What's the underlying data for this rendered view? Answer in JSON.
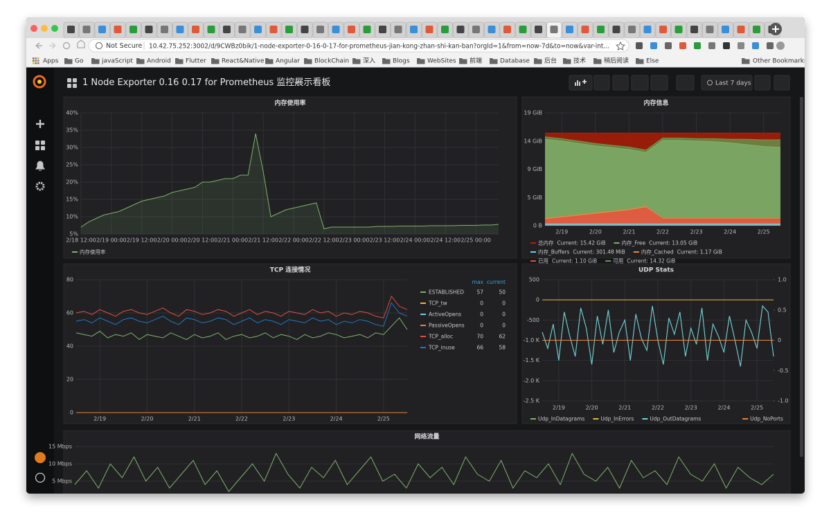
{
  "browser": {
    "security": "Not Secure",
    "url": "10.42.75.252:3002/d/9CWBz0bik/1-node-exporter-0-16-0-17-for-prometheus-jian-kong-zhan-shi-kan-ban?orgId=1&from=now-7d&to=now&var-int...",
    "bookmarks": [
      "Apps",
      "Go",
      "javaScript",
      "Android",
      "Flutter",
      "React&Native",
      "Angular",
      "BlockChain",
      "深入",
      "Blogs",
      "WebSites",
      "前端",
      "Database",
      "后台",
      "技术",
      "稍后阅读",
      "Else"
    ],
    "other_bookmarks": "Other Bookmarks"
  },
  "dashboard": {
    "title": "1 Node Exporter 0.16 0.17 for Prometheus 监控展示看板",
    "time_range": "Last 7 days"
  },
  "chart_data": [
    {
      "type": "line",
      "title": "内存使用率",
      "area": true,
      "grid": true,
      "legend": "bottom",
      "categories": [
        "2/18 12:00",
        null,
        null,
        null,
        "2/19 00:00",
        null,
        null,
        null,
        "2/19 12:00",
        null,
        null,
        null,
        "2/20 00:00",
        null,
        null,
        null,
        "2/20 12:00",
        null,
        null,
        null,
        "2/21 00:00",
        null,
        null,
        null,
        "2/21 12:00",
        null,
        null,
        null,
        "2/22 00:00",
        null,
        null,
        null,
        "2/22 12:00",
        null,
        null,
        null,
        "2/23 00:00",
        null,
        null,
        null,
        "2/23 12:00",
        null,
        null,
        null,
        "2/24 00:00",
        null,
        null,
        null,
        "2/24 12:00",
        null,
        null,
        null,
        "2/25 00:00",
        null,
        null,
        null
      ],
      "series": [
        {
          "name": "内存使用率",
          "color": "#7eb26d",
          "values": [
            7,
            8.5,
            9.5,
            10.5,
            11,
            11.5,
            12.5,
            13.5,
            14.5,
            15,
            15.5,
            16,
            17,
            17.5,
            18,
            18.5,
            20,
            20,
            20.5,
            21,
            21,
            22,
            22,
            34,
            23,
            10,
            11,
            12,
            12.5,
            13,
            13.5,
            14,
            6.5,
            7,
            7,
            7,
            7,
            7,
            7,
            7.2,
            7.2,
            7.2,
            7.3,
            7.3,
            7.3,
            7.3,
            7.4,
            7.4,
            7.4,
            7.4,
            7.5,
            7.5,
            7.5,
            7.6,
            7.6,
            7.8
          ]
        }
      ],
      "ylim": [
        5,
        40
      ],
      "yticks": [
        {
          "value": 5,
          "label": "5%"
        },
        {
          "value": 10,
          "label": "10%"
        },
        {
          "value": 15,
          "label": "15%"
        },
        {
          "value": 20,
          "label": "20%"
        },
        {
          "value": 25,
          "label": "25%"
        },
        {
          "value": 30,
          "label": "30%"
        },
        {
          "value": 35,
          "label": "35%"
        },
        {
          "value": 40,
          "label": "40%"
        }
      ]
    },
    {
      "type": "line",
      "title": "内存信息",
      "area": true,
      "grid": true,
      "legend": "bottom",
      "categories": [
        null,
        "2/19",
        null,
        "2/20",
        null,
        "2/21",
        null,
        "2/22",
        null,
        "2/23",
        null,
        "2/24",
        null,
        "2/25",
        null
      ],
      "series": [
        {
          "name": "总内存",
          "color": "#bf1b00",
          "current": {
            "value": 15.42,
            "label": "Current: 15.42 GiB"
          },
          "values": [
            15.42,
            15.42,
            15.42,
            15.42,
            15.42,
            15.42,
            15.42,
            15.42,
            15.42,
            15.42,
            15.42,
            15.42,
            15.42,
            15.42,
            15.42
          ]
        },
        {
          "name": "内存_Free",
          "color": "#7eb26d",
          "current": {
            "value": 13.05,
            "label": "Current: 13.05 GiB"
          },
          "values": [
            14.4,
            14.1,
            13.7,
            13.3,
            13.0,
            12.7,
            12.2,
            14.2,
            14.2,
            14.1,
            14.0,
            13.8,
            13.5,
            13.2,
            13.05
          ]
        },
        {
          "name": "内存_Buffers",
          "color": "#6ed0e0",
          "current": {
            "value": 0.29441,
            "label": "Current: 301.48 MiB"
          },
          "values": [
            0.3,
            0.3,
            0.3,
            0.3,
            0.3,
            0.3,
            0.3,
            0.3,
            0.3,
            0.3,
            0.3,
            0.3,
            0.3,
            0.3,
            0.29441
          ]
        },
        {
          "name": "内存_Cached",
          "color": "#ef843c",
          "current": {
            "value": 1.17,
            "label": "Current: 1.17 GiB"
          },
          "values": [
            1.2,
            1.5,
            1.8,
            2.1,
            2.4,
            2.7,
            3.2,
            1.2,
            1.2,
            1.2,
            1.2,
            1.2,
            1.2,
            1.2,
            1.17
          ]
        },
        {
          "name": "已用",
          "color": "#e24d42",
          "current": {
            "value": 1.1,
            "label": "Current: 1.10 GiB"
          },
          "values": [
            1.0,
            1.3,
            1.6,
            1.9,
            2.2,
            2.5,
            3.0,
            1.1,
            1.1,
            1.1,
            1.1,
            1.1,
            1.1,
            1.1,
            1.1
          ]
        },
        {
          "name": "可用",
          "color": "#629e51",
          "current": {
            "value": 14.32,
            "label": "Current: 14.32 GiB"
          },
          "values": [
            14.8,
            14.5,
            14.1,
            13.7,
            13.4,
            13.1,
            12.6,
            14.6,
            14.6,
            14.5,
            14.5,
            14.4,
            14.4,
            14.3,
            14.32
          ]
        }
      ],
      "ylim": [
        0,
        18.8
      ],
      "yticks": [
        {
          "value": 0,
          "label": "0 B"
        },
        {
          "value": 4.7,
          "label": "5 GiB"
        },
        {
          "value": 9.4,
          "label": "9 GiB"
        },
        {
          "value": 14.1,
          "label": "14 GiB"
        },
        {
          "value": 18.8,
          "label": "19 GiB"
        }
      ]
    },
    {
      "type": "line",
      "title": "TCP 连接情况",
      "grid": true,
      "legend": "table",
      "legend_headers": [
        "max",
        "current"
      ],
      "categories": [
        null,
        null,
        null,
        "2/19",
        null,
        null,
        null,
        null,
        null,
        "2/20",
        null,
        null,
        null,
        null,
        null,
        "2/21",
        null,
        null,
        null,
        null,
        null,
        "2/22",
        null,
        null,
        null,
        null,
        null,
        "2/23",
        null,
        null,
        null,
        null,
        null,
        "2/24",
        null,
        null,
        null,
        null,
        null,
        "2/25",
        null,
        null,
        null
      ],
      "series": [
        {
          "name": "ESTABLISHED",
          "color": "#7eb26d",
          "max": 57,
          "current": 50,
          "values": [
            48,
            47,
            46,
            49,
            45,
            47,
            46,
            48,
            44,
            47,
            46,
            45,
            48,
            46,
            44,
            47,
            45,
            46,
            48,
            44,
            46,
            47,
            45,
            46,
            48,
            45,
            47,
            46,
            44,
            47,
            45,
            46,
            48,
            47,
            45,
            46,
            47,
            45,
            48,
            47,
            52,
            57,
            50
          ]
        },
        {
          "name": "TCP_tw",
          "color": "#eab839",
          "max": 0,
          "current": 0,
          "values": [
            0,
            0,
            0,
            0,
            0,
            0,
            0,
            0,
            0,
            0,
            0,
            0,
            0,
            0,
            0,
            0,
            0,
            0,
            0,
            0,
            0,
            0,
            0,
            0,
            0,
            0,
            0,
            0,
            0,
            0,
            0,
            0,
            0,
            0,
            0,
            0,
            0,
            0,
            0,
            0,
            0,
            0,
            0
          ]
        },
        {
          "name": "ActiveOpens",
          "color": "#6ed0e0",
          "max": 0,
          "current": 0,
          "values": [
            0,
            0,
            0,
            0,
            0,
            0,
            0,
            0,
            0,
            0,
            0,
            0,
            0,
            0,
            0,
            0,
            0,
            0,
            0,
            0,
            0,
            0,
            0,
            0,
            0,
            0,
            0,
            0,
            0,
            0,
            0,
            0,
            0,
            0,
            0,
            0,
            0,
            0,
            0,
            0,
            0,
            0,
            0
          ]
        },
        {
          "name": "PassiveOpens",
          "color": "#ef843c",
          "max": 0,
          "current": 0,
          "values": [
            0,
            0,
            0,
            0,
            0,
            0,
            0,
            0,
            0,
            0,
            0,
            0,
            0,
            0,
            0,
            0,
            0,
            0,
            0,
            0,
            0,
            0,
            0,
            0,
            0,
            0,
            0,
            0,
            0,
            0,
            0,
            0,
            0,
            0,
            0,
            0,
            0,
            0,
            0,
            0,
            0,
            0,
            0
          ]
        },
        {
          "name": "TCP_alloc",
          "color": "#e24d42",
          "max": 70,
          "current": 62,
          "values": [
            60,
            61,
            59,
            62,
            60,
            58,
            61,
            62,
            60,
            59,
            61,
            63,
            60,
            58,
            62,
            61,
            59,
            60,
            62,
            61,
            58,
            60,
            62,
            59,
            61,
            60,
            58,
            61,
            60,
            59,
            62,
            60,
            61,
            58,
            60,
            59,
            61,
            60,
            58,
            57,
            70,
            64,
            62
          ]
        },
        {
          "name": "TCP_inuse",
          "color": "#1f78c1",
          "max": 66,
          "current": 58,
          "values": [
            55,
            56,
            54,
            57,
            55,
            53,
            56,
            57,
            55,
            54,
            56,
            58,
            55,
            53,
            57,
            56,
            54,
            55,
            57,
            56,
            53,
            55,
            57,
            54,
            56,
            55,
            53,
            56,
            55,
            54,
            57,
            55,
            56,
            53,
            55,
            54,
            56,
            55,
            53,
            52,
            66,
            60,
            58
          ]
        }
      ],
      "ylim": [
        0,
        80
      ],
      "yticks": [
        0,
        20,
        40,
        60,
        80
      ]
    },
    {
      "type": "line",
      "title": "UDP Stats",
      "grid": true,
      "legend": "bottom",
      "categories": [
        null,
        null,
        null,
        "2/19",
        null,
        null,
        null,
        null,
        null,
        "2/20",
        null,
        null,
        null,
        null,
        null,
        "2/21",
        null,
        null,
        null,
        null,
        null,
        "2/22",
        null,
        null,
        null,
        null,
        null,
        "2/23",
        null,
        null,
        null,
        null,
        null,
        "2/24",
        null,
        null,
        null,
        null,
        null,
        "2/25",
        null,
        null,
        null
      ],
      "series": [
        {
          "name": "Udp_InDatagrams",
          "color": "#7eb26d",
          "values": [
            -800,
            -1200,
            -600,
            -1500,
            -300,
            -900,
            -1400,
            -200,
            -700,
            -1600,
            -400,
            -1100,
            -250,
            -1300,
            -800,
            -500,
            -1500,
            -350,
            -950,
            -1250,
            -150,
            -1000,
            -1600,
            -450,
            -850,
            -300,
            -1400,
            -700,
            -1100,
            -200,
            -1500,
            -600,
            -900,
            -1300,
            -400,
            -1000,
            -1650,
            -500,
            -800,
            -1200,
            -150,
            -300,
            -1400
          ]
        },
        {
          "name": "Udp_InErrors",
          "color": "#eab839",
          "values": [
            0,
            0,
            0,
            0,
            0,
            0,
            0,
            0,
            0,
            0,
            0,
            0,
            0,
            0,
            0,
            0,
            0,
            0,
            0,
            0,
            0,
            0,
            0,
            0,
            0,
            0,
            0,
            0,
            0,
            0,
            0,
            0,
            0,
            0,
            0,
            0,
            0,
            0,
            0,
            0,
            0,
            0,
            0
          ]
        },
        {
          "name": "Udp_OutDatagrams",
          "color": "#6ed0e0",
          "values": [
            -800,
            -1200,
            -600,
            -1500,
            -300,
            -900,
            -1400,
            -200,
            -700,
            -1600,
            -400,
            -1100,
            -250,
            -1300,
            -800,
            -500,
            -1500,
            -350,
            -950,
            -1250,
            -150,
            -1000,
            -1600,
            -450,
            -850,
            -300,
            -1400,
            -700,
            -1100,
            -200,
            -1500,
            -600,
            -900,
            -1300,
            -400,
            -1000,
            -1650,
            -500,
            -800,
            -1200,
            -150,
            -300,
            -1400
          ]
        },
        {
          "name": "Udp_NoPorts",
          "color": "#ef843c",
          "axis": "y2",
          "values": [
            0,
            0,
            0,
            0,
            0,
            0,
            0,
            0,
            0,
            0,
            0,
            0,
            0,
            0,
            0,
            0,
            0,
            0,
            0,
            0,
            0,
            0,
            0,
            0,
            0,
            0,
            0,
            0,
            0,
            0,
            0,
            0,
            0,
            0,
            0,
            0,
            0,
            0,
            0,
            0,
            0,
            0,
            0
          ]
        }
      ],
      "ylim": [
        -2500,
        500
      ],
      "yticks": [
        {
          "value": -2500,
          "label": "-2.5 K"
        },
        {
          "value": -2000,
          "label": "-2.0 K"
        },
        {
          "value": -1500,
          "label": "-1.5 K"
        },
        {
          "value": -1000,
          "label": "-1.0 K"
        },
        -500,
        0,
        500
      ],
      "y2lim": [
        -1,
        1
      ],
      "y2ticks": [
        {
          "value": -1,
          "label": "-1.0"
        },
        -0.5,
        0,
        0.5,
        {
          "value": 1,
          "label": "1.0"
        }
      ]
    },
    {
      "type": "line",
      "title": "网络流量",
      "grid": true,
      "color": "#7eb26d",
      "values": [
        4,
        8,
        3,
        10,
        6,
        12,
        5,
        9,
        3,
        7,
        11,
        4,
        8,
        2,
        6,
        10,
        5,
        13,
        7,
        3,
        9,
        6,
        11,
        4,
        8,
        12,
        5,
        7,
        3,
        10,
        6,
        9,
        4,
        12,
        7,
        5,
        11,
        3,
        8,
        6,
        10,
        4,
        13,
        7,
        5,
        9,
        3,
        11,
        6,
        8,
        4,
        12,
        7,
        5,
        10,
        3,
        9,
        6,
        4,
        7
      ],
      "ylim": [
        0,
        17
      ],
      "yticks": [
        {
          "value": 5,
          "label": "5 Mbps"
        },
        {
          "value": 10,
          "label": "10 Mbps"
        },
        {
          "value": 15,
          "label": "15 Mbps"
        }
      ]
    }
  ]
}
